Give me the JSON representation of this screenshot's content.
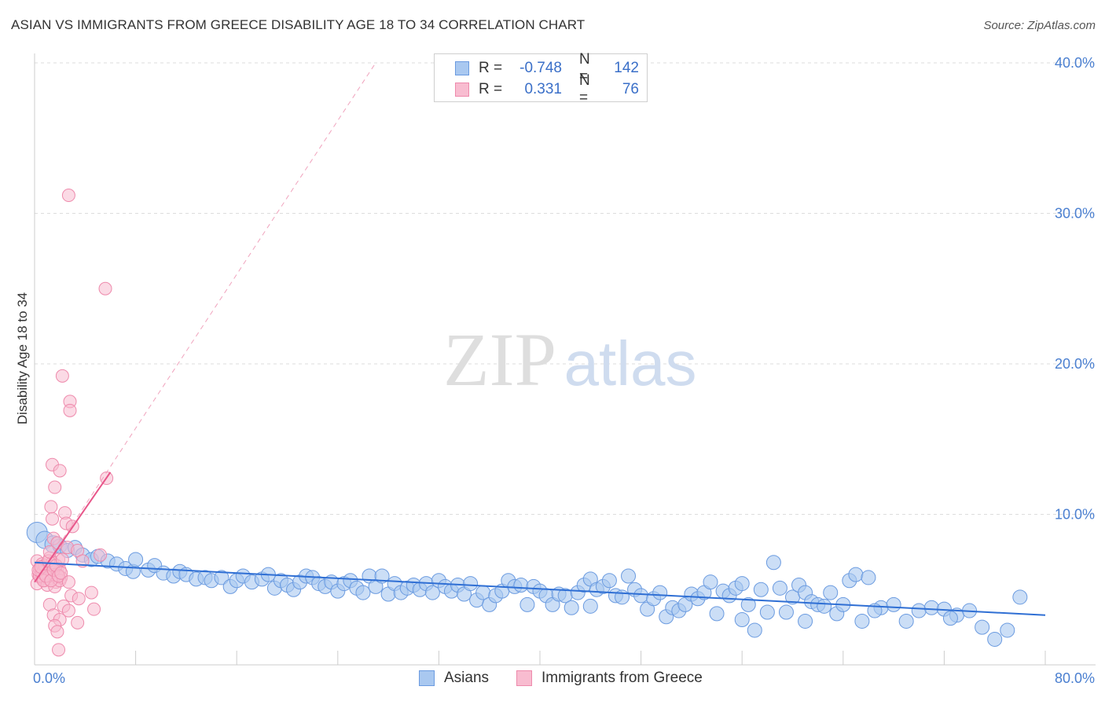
{
  "title": "ASIAN VS IMMIGRANTS FROM GREECE DISABILITY AGE 18 TO 34 CORRELATION CHART",
  "source": "Source: ZipAtlas.com",
  "watermark": {
    "zip": "ZIP",
    "atlas": "atlas"
  },
  "legend_top": {
    "rows": [
      {
        "r_label": "R =",
        "r_value": "-0.748",
        "n_label": "N =",
        "n_value": "142",
        "color": "#a9c8f0",
        "border": "#6b9be0"
      },
      {
        "r_label": "R =",
        "r_value": "0.331",
        "n_label": "N =",
        "n_value": "76",
        "color": "#f8bcd0",
        "border": "#ee8aac"
      }
    ]
  },
  "legend_bottom": [
    {
      "label": "Asians",
      "color": "#a9c8f0",
      "border": "#6b9be0"
    },
    {
      "label": "Immigrants from Greece",
      "color": "#f8bcd0",
      "border": "#ee8aac"
    }
  ],
  "chart_data": {
    "type": "scatter",
    "title": "ASIAN VS IMMIGRANTS FROM GREECE DISABILITY AGE 18 TO 34 CORRELATION CHART",
    "xlabel": "",
    "ylabel": "Disability Age 18 to 34",
    "xlim": [
      0,
      80
    ],
    "ylim": [
      0,
      40
    ],
    "x_tick_labels": [
      "0.0%",
      "80.0%"
    ],
    "y_tick_labels": [
      "10.0%",
      "20.0%",
      "30.0%",
      "40.0%"
    ],
    "y_ticks": [
      10,
      20,
      30,
      40
    ],
    "colors": {
      "asians_fill": "#a9c8f0",
      "asians_stroke": "#6b9be0",
      "asians_line": "#2f6fd4",
      "greece_fill": "#f8bcd0",
      "greece_stroke": "#ee8aac",
      "greece_line": "#e8568a"
    },
    "series": [
      {
        "name": "Asians",
        "trend": {
          "x": [
            0,
            80
          ],
          "y": [
            6.8,
            3.3
          ]
        },
        "points": [
          [
            0.2,
            8.8
          ],
          [
            0.8,
            8.3
          ],
          [
            1.5,
            8.0
          ],
          [
            2.0,
            7.9
          ],
          [
            2.6,
            7.6
          ],
          [
            3.2,
            7.8
          ],
          [
            3.8,
            7.3
          ],
          [
            4.5,
            7.0
          ],
          [
            5.0,
            7.2
          ],
          [
            5.8,
            6.9
          ],
          [
            6.5,
            6.7
          ],
          [
            7.2,
            6.4
          ],
          [
            7.8,
            6.2
          ],
          [
            8.0,
            7.0
          ],
          [
            9.0,
            6.3
          ],
          [
            9.5,
            6.6
          ],
          [
            10.2,
            6.1
          ],
          [
            11.0,
            5.9
          ],
          [
            11.5,
            6.2
          ],
          [
            12.0,
            6.0
          ],
          [
            12.8,
            5.7
          ],
          [
            13.5,
            5.8
          ],
          [
            14.0,
            5.6
          ],
          [
            14.8,
            5.8
          ],
          [
            15.5,
            5.2
          ],
          [
            16.0,
            5.6
          ],
          [
            16.5,
            5.9
          ],
          [
            17.2,
            5.5
          ],
          [
            18.0,
            5.7
          ],
          [
            18.5,
            6.0
          ],
          [
            19.0,
            5.1
          ],
          [
            19.5,
            5.6
          ],
          [
            20.0,
            5.3
          ],
          [
            20.5,
            5.0
          ],
          [
            21.0,
            5.5
          ],
          [
            21.5,
            5.9
          ],
          [
            22.0,
            5.8
          ],
          [
            22.5,
            5.4
          ],
          [
            23.0,
            5.2
          ],
          [
            23.5,
            5.5
          ],
          [
            24.0,
            4.9
          ],
          [
            24.5,
            5.4
          ],
          [
            25.0,
            5.6
          ],
          [
            25.5,
            5.1
          ],
          [
            26.0,
            4.8
          ],
          [
            26.5,
            5.9
          ],
          [
            27.0,
            5.2
          ],
          [
            27.5,
            5.9
          ],
          [
            28.0,
            4.7
          ],
          [
            28.5,
            5.4
          ],
          [
            29.0,
            4.8
          ],
          [
            29.5,
            5.1
          ],
          [
            30.0,
            5.3
          ],
          [
            30.5,
            5.0
          ],
          [
            31.0,
            5.4
          ],
          [
            31.5,
            4.8
          ],
          [
            32.0,
            5.6
          ],
          [
            32.5,
            5.2
          ],
          [
            33.0,
            4.9
          ],
          [
            33.5,
            5.3
          ],
          [
            34.0,
            4.7
          ],
          [
            34.5,
            5.4
          ],
          [
            35.0,
            4.3
          ],
          [
            35.5,
            4.8
          ],
          [
            36.0,
            4.0
          ],
          [
            36.5,
            4.6
          ],
          [
            37.0,
            4.9
          ],
          [
            37.5,
            5.6
          ],
          [
            38.0,
            5.2
          ],
          [
            38.5,
            5.3
          ],
          [
            39.0,
            4.0
          ],
          [
            39.5,
            5.2
          ],
          [
            40.0,
            4.9
          ],
          [
            40.5,
            4.6
          ],
          [
            41.0,
            4.0
          ],
          [
            41.5,
            4.7
          ],
          [
            42.0,
            4.6
          ],
          [
            42.5,
            3.8
          ],
          [
            43.0,
            4.8
          ],
          [
            43.5,
            5.3
          ],
          [
            44.0,
            5.7
          ],
          [
            44.5,
            5.0
          ],
          [
            45.0,
            5.2
          ],
          [
            45.5,
            5.6
          ],
          [
            46.0,
            4.6
          ],
          [
            46.5,
            4.5
          ],
          [
            47.0,
            5.9
          ],
          [
            47.5,
            5.0
          ],
          [
            48.0,
            4.6
          ],
          [
            48.5,
            3.7
          ],
          [
            49.0,
            4.4
          ],
          [
            49.5,
            4.8
          ],
          [
            50.0,
            3.2
          ],
          [
            50.5,
            3.8
          ],
          [
            51.0,
            3.6
          ],
          [
            51.5,
            4.0
          ],
          [
            52.0,
            4.7
          ],
          [
            52.5,
            4.4
          ],
          [
            53.0,
            4.8
          ],
          [
            53.5,
            5.5
          ],
          [
            54.0,
            3.4
          ],
          [
            54.5,
            4.9
          ],
          [
            55.0,
            4.6
          ],
          [
            55.5,
            5.1
          ],
          [
            56.0,
            5.4
          ],
          [
            56.5,
            4.0
          ],
          [
            57.0,
            2.3
          ],
          [
            57.5,
            5.0
          ],
          [
            58.0,
            3.5
          ],
          [
            58.5,
            6.8
          ],
          [
            59.0,
            5.1
          ],
          [
            59.5,
            3.5
          ],
          [
            60.0,
            4.5
          ],
          [
            60.5,
            5.3
          ],
          [
            61.0,
            4.8
          ],
          [
            61.5,
            4.2
          ],
          [
            62.0,
            4.0
          ],
          [
            62.5,
            3.9
          ],
          [
            63.0,
            4.8
          ],
          [
            63.5,
            3.4
          ],
          [
            64.0,
            4.0
          ],
          [
            64.5,
            5.6
          ],
          [
            65.0,
            6.0
          ],
          [
            65.5,
            2.9
          ],
          [
            66.0,
            5.8
          ],
          [
            67.0,
            3.8
          ],
          [
            68.0,
            4.0
          ],
          [
            69.0,
            2.9
          ],
          [
            70.0,
            3.6
          ],
          [
            71.0,
            3.8
          ],
          [
            72.0,
            3.7
          ],
          [
            73.0,
            3.3
          ],
          [
            74.0,
            3.6
          ],
          [
            75.0,
            2.5
          ],
          [
            76.0,
            1.7
          ],
          [
            77.0,
            2.3
          ],
          [
            56.0,
            3.0
          ],
          [
            61.0,
            2.9
          ],
          [
            66.5,
            3.6
          ],
          [
            72.5,
            3.1
          ],
          [
            78.0,
            4.5
          ],
          [
            44.0,
            3.9
          ]
        ]
      },
      {
        "name": "Immigrants from Greece",
        "trend": {
          "x": [
            0,
            6
          ],
          "y": [
            5.5,
            12.8
          ]
        },
        "trend_extended": {
          "x": [
            0,
            27
          ],
          "y": [
            5.5,
            40
          ]
        },
        "points": [
          [
            0.2,
            6.9
          ],
          [
            0.3,
            6.0
          ],
          [
            0.4,
            6.4
          ],
          [
            0.5,
            5.8
          ],
          [
            0.6,
            6.7
          ],
          [
            0.7,
            6.2
          ],
          [
            0.8,
            5.6
          ],
          [
            0.9,
            6.3
          ],
          [
            1.0,
            6.1
          ],
          [
            1.1,
            5.7
          ],
          [
            1.2,
            6.5
          ],
          [
            1.3,
            6.0
          ],
          [
            1.4,
            5.9
          ],
          [
            1.5,
            6.6
          ],
          [
            1.6,
            6.2
          ],
          [
            1.7,
            5.5
          ],
          [
            1.8,
            6.4
          ],
          [
            1.9,
            7.0
          ],
          [
            2.0,
            6.3
          ],
          [
            2.1,
            5.8
          ],
          [
            0.2,
            5.4
          ],
          [
            0.4,
            5.9
          ],
          [
            0.6,
            6.1
          ],
          [
            0.8,
            6.6
          ],
          [
            1.0,
            5.3
          ],
          [
            1.2,
            7.1
          ],
          [
            1.4,
            6.8
          ],
          [
            1.6,
            5.2
          ],
          [
            1.8,
            6.0
          ],
          [
            2.0,
            5.6
          ],
          [
            0.3,
            6.3
          ],
          [
            0.5,
            6.5
          ],
          [
            0.7,
            5.6
          ],
          [
            0.9,
            5.9
          ],
          [
            1.1,
            6.9
          ],
          [
            1.3,
            5.6
          ],
          [
            1.5,
            6.3
          ],
          [
            1.7,
            6.6
          ],
          [
            1.9,
            5.9
          ],
          [
            2.1,
            6.1
          ],
          [
            2.7,
            31.2
          ],
          [
            5.6,
            25.0
          ],
          [
            2.2,
            19.2
          ],
          [
            2.8,
            17.5
          ],
          [
            2.8,
            16.9
          ],
          [
            1.4,
            13.3
          ],
          [
            2.0,
            12.9
          ],
          [
            1.6,
            11.8
          ],
          [
            5.7,
            12.4
          ],
          [
            1.3,
            10.5
          ],
          [
            2.4,
            10.1
          ],
          [
            1.4,
            9.7
          ],
          [
            2.5,
            9.4
          ],
          [
            3.0,
            9.2
          ],
          [
            1.5,
            8.4
          ],
          [
            1.8,
            8.1
          ],
          [
            2.6,
            7.8
          ],
          [
            3.4,
            7.6
          ],
          [
            1.2,
            7.5
          ],
          [
            2.2,
            7.0
          ],
          [
            5.2,
            7.3
          ],
          [
            3.8,
            6.9
          ],
          [
            2.7,
            5.5
          ],
          [
            2.9,
            4.6
          ],
          [
            3.5,
            4.4
          ],
          [
            4.5,
            4.8
          ],
          [
            1.2,
            4.0
          ],
          [
            2.3,
            3.9
          ],
          [
            2.7,
            3.6
          ],
          [
            4.7,
            3.7
          ],
          [
            1.5,
            3.3
          ],
          [
            2.0,
            3.0
          ],
          [
            1.6,
            2.6
          ],
          [
            3.4,
            2.8
          ],
          [
            1.8,
            2.2
          ],
          [
            1.9,
            1.0
          ]
        ]
      }
    ]
  }
}
